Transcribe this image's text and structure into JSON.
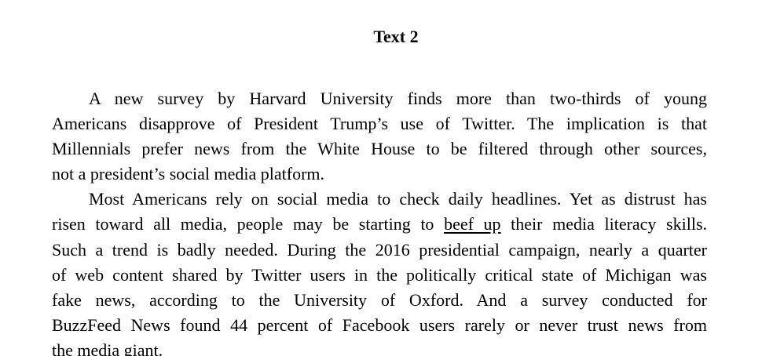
{
  "document": {
    "title": "Text 2",
    "paragraphs": [
      {
        "lines": [
          "A new survey by Harvard University finds more than two-thirds of young",
          "Americans disapprove of President Trump’s use of Twitter. The implication is that",
          "Millennials prefer news from the White House to be filtered through other sources,",
          "not a president’s social media platform."
        ]
      },
      {
        "lines": [
          "Most Americans rely on social media to check daily headlines. Yet as distrust has",
          "risen toward all media, people may be starting to",
          "their media literacy skills.",
          "Such a trend is badly needed. During the 2016 presidential campaign, nearly a quarter",
          "of web content shared by Twitter users in the politically critical state of Michigan was",
          "fake news, according to the University of Oxford. And a survey conducted for",
          "BuzzFeed News found 44 percent of Facebook users rarely or never trust news from",
          "the media giant."
        ],
        "underlined_phrase": "beef up"
      }
    ]
  }
}
